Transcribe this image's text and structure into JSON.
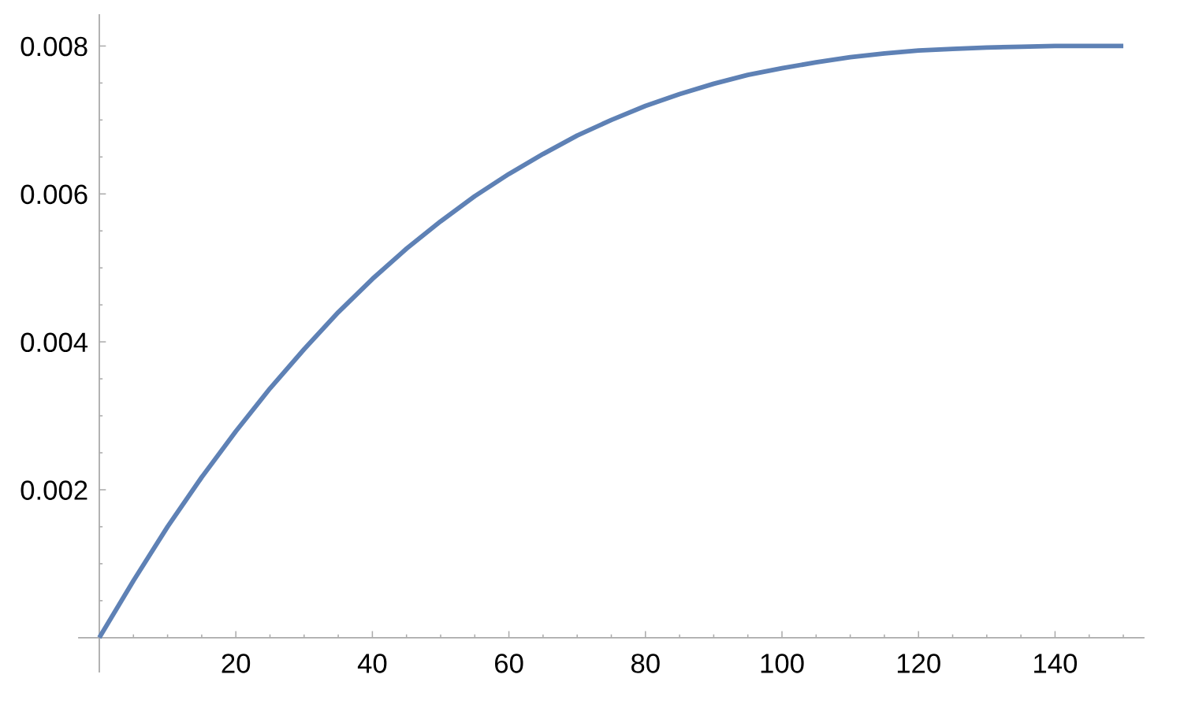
{
  "chart_data": {
    "type": "line",
    "x": [
      0,
      5,
      10,
      15,
      20,
      25,
      30,
      35,
      40,
      45,
      50,
      55,
      60,
      65,
      70,
      75,
      80,
      85,
      90,
      95,
      100,
      105,
      110,
      115,
      120,
      125,
      130,
      135,
      140,
      145,
      150
    ],
    "values": [
      0,
      0.00077,
      0.0015,
      0.00217,
      0.00279,
      0.00337,
      0.0039,
      0.0044,
      0.00485,
      0.00526,
      0.00563,
      0.00597,
      0.00627,
      0.00654,
      0.00679,
      0.007,
      0.00719,
      0.00735,
      0.00749,
      0.00761,
      0.0077,
      0.00778,
      0.00785,
      0.0079,
      0.00794,
      0.00796,
      0.00798,
      0.00799,
      0.008,
      0.008,
      0.008
    ],
    "color": "#5e81b5",
    "xlim": [
      -3,
      153
    ],
    "ylim": [
      -0.00046,
      0.00842
    ],
    "xticks": [
      {
        "value": 5,
        "label": null
      },
      {
        "value": 10,
        "label": null
      },
      {
        "value": 15,
        "label": null
      },
      20,
      {
        "value": 25,
        "label": null
      },
      {
        "value": 30,
        "label": null
      },
      {
        "value": 35,
        "label": null
      },
      40,
      {
        "value": 45,
        "label": null
      },
      {
        "value": 50,
        "label": null
      },
      {
        "value": 55,
        "label": null
      },
      60,
      {
        "value": 65,
        "label": null
      },
      {
        "value": 70,
        "label": null
      },
      {
        "value": 75,
        "label": null
      },
      80,
      {
        "value": 85,
        "label": null
      },
      {
        "value": 90,
        "label": null
      },
      {
        "value": 95,
        "label": null
      },
      100,
      {
        "value": 105,
        "label": null
      },
      {
        "value": 110,
        "label": null
      },
      {
        "value": 115,
        "label": null
      },
      120,
      {
        "value": 125,
        "label": null
      },
      {
        "value": 130,
        "label": null
      },
      {
        "value": 135,
        "label": null
      },
      140,
      {
        "value": 145,
        "label": null
      },
      {
        "value": 150,
        "label": null
      }
    ],
    "yticks": [
      {
        "value": 0.0005,
        "label": null
      },
      {
        "value": 0.001,
        "label": null
      },
      {
        "value": 0.0015,
        "label": null
      },
      0.002,
      {
        "value": 0.0025,
        "label": null
      },
      {
        "value": 0.003,
        "label": null
      },
      {
        "value": 0.0035,
        "label": null
      },
      0.004,
      {
        "value": 0.0045,
        "label": null
      },
      {
        "value": 0.005,
        "label": null
      },
      {
        "value": 0.0055,
        "label": null
      },
      0.006,
      {
        "value": 0.0065,
        "label": null
      },
      {
        "value": 0.007,
        "label": null
      },
      {
        "value": 0.0075,
        "label": null
      },
      0.008
    ]
  }
}
